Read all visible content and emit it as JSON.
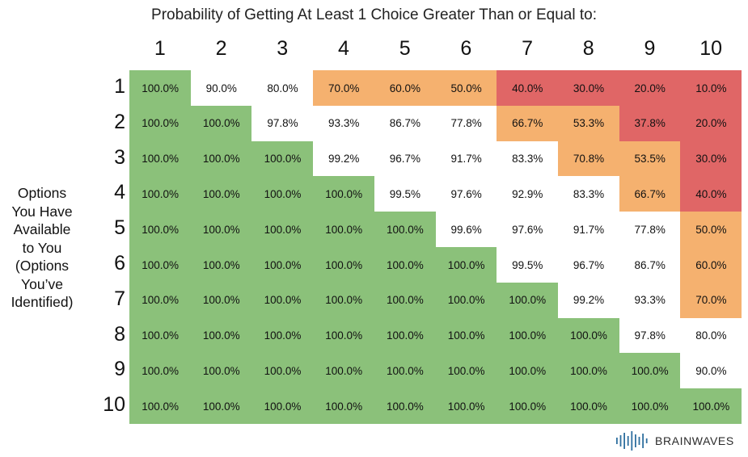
{
  "chart_data": {
    "type": "table",
    "title": "Probability of Getting At Least 1 Choice Greater Than or Equal to:",
    "ylabel": "Options\nYou Have\nAvailable\nto You\n(Options\nYou’ve\nIdentified)",
    "columns": [
      "1",
      "2",
      "3",
      "4",
      "5",
      "6",
      "7",
      "8",
      "9",
      "10"
    ],
    "rows": [
      "1",
      "2",
      "3",
      "4",
      "5",
      "6",
      "7",
      "8",
      "9",
      "10"
    ],
    "values": [
      [
        "100.0%",
        "90.0%",
        "80.0%",
        "70.0%",
        "60.0%",
        "50.0%",
        "40.0%",
        "30.0%",
        "20.0%",
        "10.0%"
      ],
      [
        "100.0%",
        "100.0%",
        "97.8%",
        "93.3%",
        "86.7%",
        "77.8%",
        "66.7%",
        "53.3%",
        "37.8%",
        "20.0%"
      ],
      [
        "100.0%",
        "100.0%",
        "100.0%",
        "99.2%",
        "96.7%",
        "91.7%",
        "83.3%",
        "70.8%",
        "53.5%",
        "30.0%"
      ],
      [
        "100.0%",
        "100.0%",
        "100.0%",
        "100.0%",
        "99.5%",
        "97.6%",
        "92.9%",
        "83.3%",
        "66.7%",
        "40.0%"
      ],
      [
        "100.0%",
        "100.0%",
        "100.0%",
        "100.0%",
        "100.0%",
        "99.6%",
        "97.6%",
        "91.7%",
        "77.8%",
        "50.0%"
      ],
      [
        "100.0%",
        "100.0%",
        "100.0%",
        "100.0%",
        "100.0%",
        "100.0%",
        "99.5%",
        "96.7%",
        "86.7%",
        "60.0%"
      ],
      [
        "100.0%",
        "100.0%",
        "100.0%",
        "100.0%",
        "100.0%",
        "100.0%",
        "100.0%",
        "99.2%",
        "93.3%",
        "70.0%"
      ],
      [
        "100.0%",
        "100.0%",
        "100.0%",
        "100.0%",
        "100.0%",
        "100.0%",
        "100.0%",
        "100.0%",
        "97.8%",
        "80.0%"
      ],
      [
        "100.0%",
        "100.0%",
        "100.0%",
        "100.0%",
        "100.0%",
        "100.0%",
        "100.0%",
        "100.0%",
        "100.0%",
        "90.0%"
      ],
      [
        "100.0%",
        "100.0%",
        "100.0%",
        "100.0%",
        "100.0%",
        "100.0%",
        "100.0%",
        "100.0%",
        "100.0%",
        "100.0%"
      ]
    ],
    "color_categories": [
      [
        "g",
        "w",
        "w",
        "o",
        "o",
        "o",
        "r",
        "r",
        "r",
        "r"
      ],
      [
        "g",
        "g",
        "w",
        "w",
        "w",
        "w",
        "o",
        "o",
        "r",
        "r"
      ],
      [
        "g",
        "g",
        "g",
        "w",
        "w",
        "w",
        "w",
        "o",
        "o",
        "r"
      ],
      [
        "g",
        "g",
        "g",
        "g",
        "w",
        "w",
        "w",
        "w",
        "o",
        "r"
      ],
      [
        "g",
        "g",
        "g",
        "g",
        "g",
        "w",
        "w",
        "w",
        "w",
        "o"
      ],
      [
        "g",
        "g",
        "g",
        "g",
        "g",
        "g",
        "w",
        "w",
        "w",
        "o"
      ],
      [
        "g",
        "g",
        "g",
        "g",
        "g",
        "g",
        "g",
        "w",
        "w",
        "o"
      ],
      [
        "g",
        "g",
        "g",
        "g",
        "g",
        "g",
        "g",
        "g",
        "w",
        "w"
      ],
      [
        "g",
        "g",
        "g",
        "g",
        "g",
        "g",
        "g",
        "g",
        "g",
        "w"
      ],
      [
        "g",
        "g",
        "g",
        "g",
        "g",
        "g",
        "g",
        "g",
        "g",
        "g"
      ]
    ]
  },
  "colors": {
    "g": "#8bc17a",
    "w": "#ffffff",
    "o": "#f5b16f",
    "r": "#e06666"
  },
  "brand": {
    "name": "BRAINWAVES",
    "logo_color": "#2f6f9f"
  }
}
